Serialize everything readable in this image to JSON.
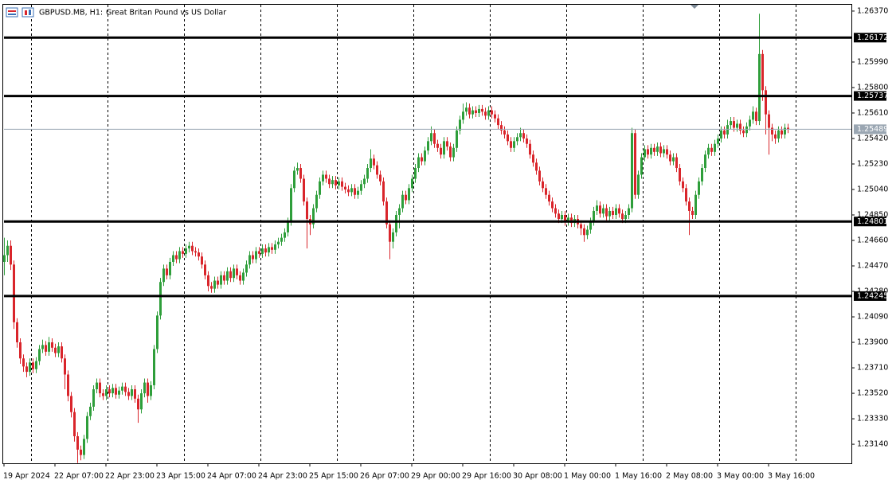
{
  "chart_data": {
    "type": "candlestick",
    "symbol": "GBPUSD.MB, H1:",
    "title": "Great Britan Pound vs US Dollar",
    "up_color": "#2e9e3a",
    "down_color": "#d9252b",
    "categories": [
      "19 Apr 2024",
      null,
      null,
      null,
      null,
      null,
      null,
      null,
      null,
      null,
      null,
      null,
      null,
      null,
      null,
      null,
      "22 Apr 07:00",
      null,
      null,
      null,
      null,
      null,
      null,
      null,
      null,
      null,
      null,
      null,
      null,
      null,
      null,
      null,
      "22 Apr 23:00",
      null,
      null,
      null,
      null,
      null,
      null,
      null,
      null,
      null,
      null,
      null,
      null,
      null,
      null,
      null,
      "23 Apr 15:00",
      null,
      null,
      null,
      null,
      null,
      null,
      null,
      null,
      null,
      null,
      null,
      null,
      null,
      null,
      null,
      "24 Apr 07:00",
      null,
      null,
      null,
      null,
      null,
      null,
      null,
      null,
      null,
      null,
      null,
      null,
      null,
      null,
      null,
      "24 Apr 23:00",
      null,
      null,
      null,
      null,
      null,
      null,
      null,
      null,
      null,
      null,
      null,
      null,
      null,
      null,
      null,
      "25 Apr 15:00",
      null,
      null,
      null,
      null,
      null,
      null,
      null,
      null,
      null,
      null,
      null,
      null,
      null,
      null,
      null,
      "26 Apr 07:00",
      null,
      null,
      null,
      null,
      null,
      null,
      null,
      null,
      null,
      null,
      null,
      null,
      null,
      null,
      null,
      "29 Apr 00:00",
      null,
      null,
      null,
      null,
      null,
      null,
      null,
      null,
      null,
      null,
      null,
      null,
      null,
      null,
      null,
      "29 Apr 16:00",
      null,
      null,
      null,
      null,
      null,
      null,
      null,
      null,
      null,
      null,
      null,
      null,
      null,
      null,
      null,
      "30 Apr 08:00",
      null,
      null,
      null,
      null,
      null,
      null,
      null,
      null,
      null,
      null,
      null,
      null,
      null,
      null,
      null,
      "1 May 00:00",
      null,
      null,
      null,
      null,
      null,
      null,
      null,
      null,
      null,
      null,
      null,
      null,
      null,
      null,
      null,
      "1 May 16:00",
      null,
      null,
      null,
      null,
      null,
      null,
      null,
      null,
      null,
      null,
      null,
      null,
      null,
      null,
      null,
      "2 May 08:00",
      null,
      null,
      null,
      null,
      null,
      null,
      null,
      null,
      null,
      null,
      null,
      null,
      null,
      null,
      null,
      "3 May 00:00",
      null,
      null,
      null,
      null,
      null,
      null,
      null,
      null,
      null,
      null,
      null,
      null,
      null,
      null,
      null,
      "3 May 16:00",
      null,
      null,
      null,
      null,
      null,
      null
    ],
    "open": [
      1.245,
      1.2455,
      1.2462,
      1.2448,
      1.2405,
      1.239,
      1.2378,
      1.2372,
      1.2368,
      1.2375,
      1.237,
      1.2376,
      1.2385,
      1.2388,
      1.2383,
      1.239,
      1.2386,
      1.2382,
      1.2387,
      1.2378,
      1.2366,
      1.235,
      1.2338,
      1.232,
      1.231,
      1.2306,
      1.2318,
      1.2335,
      1.2342,
      1.2355,
      1.236,
      1.2352,
      1.235,
      1.2355,
      1.2352,
      1.2356,
      1.2351,
      1.2354,
      1.2357,
      1.2353,
      1.235,
      1.2355,
      1.2348,
      1.234,
      1.2352,
      1.236,
      1.235,
      1.2358,
      1.2385,
      1.241,
      1.2435,
      1.2445,
      1.244,
      1.245,
      1.2455,
      1.2452,
      1.2458,
      1.2456,
      1.246,
      1.2462,
      1.2458,
      1.2457,
      1.2454,
      1.2448,
      1.244,
      1.2432,
      1.243,
      1.2436,
      1.2433,
      1.244,
      1.2436,
      1.2443,
      1.2438,
      1.2445,
      1.244,
      1.2436,
      1.2442,
      1.2448,
      1.2455,
      1.2452,
      1.2458,
      1.2456,
      1.246,
      1.2457,
      1.2461,
      1.2459,
      1.2463,
      1.2465,
      1.2468,
      1.2472,
      1.248,
      1.2505,
      1.2518,
      1.252,
      1.2512,
      1.2495,
      1.2482,
      1.2478,
      1.249,
      1.25,
      1.251,
      1.2515,
      1.2512,
      1.2508,
      1.2511,
      1.2507,
      1.251,
      1.2506,
      1.2504,
      1.2502,
      1.2505,
      1.25,
      1.2503,
      1.2508,
      1.2512,
      1.252,
      1.2527,
      1.2522,
      1.2515,
      1.251,
      1.2495,
      1.2478,
      1.2465,
      1.2472,
      1.2485,
      1.249,
      1.25,
      1.2496,
      1.2505,
      1.2512,
      1.252,
      1.2528,
      1.2525,
      1.2533,
      1.254,
      1.2546,
      1.2538,
      1.2535,
      1.253,
      1.254,
      1.2536,
      1.2528,
      1.2535,
      1.2548,
      1.2556,
      1.2562,
      1.2565,
      1.256,
      1.2563,
      1.2561,
      1.2564,
      1.2562,
      1.2559,
      1.2563,
      1.256,
      1.2557,
      1.2552,
      1.2548,
      1.2545,
      1.254,
      1.2535,
      1.254,
      1.2543,
      1.2546,
      1.2542,
      1.2538,
      1.253,
      1.2524,
      1.2518,
      1.251,
      1.2505,
      1.25,
      1.2495,
      1.249,
      1.2486,
      1.2482,
      1.2485,
      1.248,
      1.2483,
      1.2479,
      1.2482,
      1.2478,
      1.2475,
      1.247,
      1.2474,
      1.248,
      1.2488,
      1.2492,
      1.2486,
      1.249,
      1.2484,
      1.2488,
      1.2485,
      1.249,
      1.2486,
      1.2482,
      1.2485,
      1.249,
      1.2546,
      1.25,
      1.2515,
      1.2528,
      1.2534,
      1.253,
      1.2535,
      1.2532,
      1.2536,
      1.2531,
      1.2534,
      1.253,
      1.2525,
      1.2528,
      1.252,
      1.251,
      1.2505,
      1.2495,
      1.2488,
      1.2485,
      1.25,
      1.251,
      1.252,
      1.253,
      1.2535,
      1.2532,
      1.2538,
      1.2542,
      1.2548,
      1.2545,
      1.2552,
      1.2555,
      1.255,
      1.2553,
      1.2548,
      1.2546,
      1.2551,
      1.2556,
      1.2562,
      1.2555,
      1.2605,
      1.2578,
      1.256,
      1.255,
      1.2545,
      1.2542,
      1.2548,
      1.2545,
      1.255
    ],
    "high": [
      1.2468,
      1.2466,
      1.2466,
      1.2451,
      1.2408,
      1.2393,
      1.2381,
      1.2375,
      1.2378,
      1.2378,
      1.2379,
      1.2388,
      1.2392,
      1.2391,
      1.2394,
      1.2393,
      1.2389,
      1.239,
      1.239,
      1.2381,
      1.2369,
      1.2353,
      1.2341,
      1.2323,
      1.2313,
      1.2321,
      1.2338,
      1.2345,
      1.2358,
      1.2363,
      1.2363,
      1.2355,
      1.2358,
      1.2358,
      1.2359,
      1.2359,
      1.2357,
      1.236,
      1.236,
      1.2356,
      1.2358,
      1.2358,
      1.2351,
      1.2355,
      1.2363,
      1.2363,
      1.2361,
      1.2388,
      1.2413,
      1.2438,
      1.2448,
      1.2448,
      1.2453,
      1.2458,
      1.2458,
      1.2461,
      1.2461,
      1.2463,
      1.2465,
      1.2465,
      1.2461,
      1.246,
      1.2457,
      1.2451,
      1.2443,
      1.2435,
      1.2439,
      1.2439,
      1.2443,
      1.2443,
      1.2446,
      1.2446,
      1.2448,
      1.2448,
      1.2443,
      1.2445,
      1.2451,
      1.2458,
      1.2458,
      1.2461,
      1.2461,
      1.2463,
      1.2463,
      1.2464,
      1.2464,
      1.2466,
      1.2468,
      1.2471,
      1.2475,
      1.2483,
      1.2508,
      1.2521,
      1.2524,
      1.2523,
      1.2515,
      1.2498,
      1.2485,
      1.2493,
      1.2503,
      1.2513,
      1.2518,
      1.2518,
      1.2515,
      1.2514,
      1.2514,
      1.2513,
      1.2513,
      1.2509,
      1.2507,
      1.2508,
      1.2508,
      1.2506,
      1.2511,
      1.2515,
      1.2523,
      1.2534,
      1.253,
      1.2525,
      1.2518,
      1.2513,
      1.2498,
      1.2481,
      1.2475,
      1.2488,
      1.2493,
      1.2503,
      1.2503,
      1.2508,
      1.2515,
      1.2523,
      1.2531,
      1.2531,
      1.2536,
      1.2543,
      1.2551,
      1.2549,
      1.2541,
      1.2538,
      1.2543,
      1.2543,
      1.2539,
      1.2538,
      1.2551,
      1.2559,
      1.2568,
      1.2569,
      1.2568,
      1.2566,
      1.2566,
      1.2567,
      1.2567,
      1.2565,
      1.2566,
      1.2566,
      1.2563,
      1.256,
      1.2555,
      1.2551,
      1.2548,
      1.2543,
      1.2543,
      1.2546,
      1.255,
      1.2549,
      1.2545,
      1.2541,
      1.2533,
      1.2527,
      1.2521,
      1.2513,
      1.2508,
      1.2503,
      1.2498,
      1.2493,
      1.2489,
      1.2488,
      1.2488,
      1.2486,
      1.2486,
      1.2485,
      1.2485,
      1.2481,
      1.2478,
      1.2477,
      1.2483,
      1.2491,
      1.2496,
      1.2495,
      1.2493,
      1.2493,
      1.2491,
      1.2491,
      1.2493,
      1.2493,
      1.2489,
      1.2488,
      1.2493,
      1.255,
      1.2549,
      1.2518,
      1.2531,
      1.2537,
      1.2537,
      1.2538,
      1.2538,
      1.2539,
      1.2539,
      1.2537,
      1.2537,
      1.2533,
      1.2531,
      1.2531,
      1.2523,
      1.2513,
      1.2508,
      1.2498,
      1.2491,
      1.2503,
      1.2513,
      1.2523,
      1.2533,
      1.2538,
      1.2538,
      1.2541,
      1.2545,
      1.2551,
      1.2551,
      1.2556,
      1.2558,
      1.2558,
      1.2556,
      1.2556,
      1.2551,
      1.2554,
      1.2559,
      1.2566,
      1.2565,
      1.2635,
      1.2608,
      1.2581,
      1.2563,
      1.2553,
      1.2548,
      1.2551,
      1.2551,
      1.2553,
      1.2553
    ],
    "low": [
      1.244,
      1.245,
      1.2444,
      1.24,
      1.2386,
      1.2374,
      1.2368,
      1.2364,
      1.2365,
      1.2367,
      1.2367,
      1.2373,
      1.2382,
      1.238,
      1.238,
      1.2383,
      1.2379,
      1.2379,
      1.2375,
      1.2355,
      1.2346,
      1.2334,
      1.2316,
      1.23,
      1.2302,
      1.2303,
      1.2315,
      1.2332,
      1.2339,
      1.2352,
      1.2349,
      1.2347,
      1.2347,
      1.2349,
      1.2349,
      1.2348,
      1.2348,
      1.2351,
      1.235,
      1.2347,
      1.2347,
      1.2345,
      1.233,
      1.2337,
      1.2349,
      1.2345,
      1.2347,
      1.2355,
      1.2382,
      1.2407,
      1.2432,
      1.2437,
      1.2437,
      1.2447,
      1.2449,
      1.2449,
      1.2453,
      1.2453,
      1.2457,
      1.2455,
      1.2454,
      1.2451,
      1.2445,
      1.2437,
      1.2428,
      1.2427,
      1.2427,
      1.243,
      1.243,
      1.2433,
      1.2433,
      1.2435,
      1.2435,
      1.2437,
      1.2433,
      1.2433,
      1.2439,
      1.2445,
      1.2449,
      1.2449,
      1.2453,
      1.2453,
      1.2454,
      1.2454,
      1.2456,
      1.2456,
      1.246,
      1.2462,
      1.2465,
      1.2469,
      1.2477,
      1.2502,
      1.2515,
      1.2509,
      1.2492,
      1.246,
      1.247,
      1.2475,
      1.2487,
      1.2497,
      1.2507,
      1.2509,
      1.2505,
      1.2505,
      1.2504,
      1.2504,
      1.2503,
      1.2501,
      1.2499,
      1.2499,
      1.2497,
      1.2497,
      1.25,
      1.2505,
      1.2509,
      1.2517,
      1.2519,
      1.2512,
      1.2507,
      1.2492,
      1.2475,
      1.2452,
      1.246,
      1.2469,
      1.2475,
      1.2487,
      1.2493,
      1.2493,
      1.2502,
      1.2509,
      1.2517,
      1.2522,
      1.2522,
      1.253,
      1.2537,
      1.2535,
      1.2532,
      1.2527,
      1.2527,
      1.2533,
      1.2525,
      1.2525,
      1.2532,
      1.2545,
      1.2553,
      1.2559,
      1.2557,
      1.2557,
      1.2558,
      1.2558,
      1.2559,
      1.2556,
      1.2556,
      1.2557,
      1.2554,
      1.2549,
      1.2545,
      1.2542,
      1.2537,
      1.2532,
      1.2532,
      1.2537,
      1.254,
      1.2539,
      1.2535,
      1.2527,
      1.2521,
      1.2515,
      1.2507,
      1.2502,
      1.2497,
      1.2492,
      1.2487,
      1.2483,
      1.2479,
      1.2479,
      1.2477,
      1.2477,
      1.2476,
      1.2476,
      1.2475,
      1.247,
      1.2465,
      1.2467,
      1.2471,
      1.2477,
      1.2485,
      1.2483,
      1.2483,
      1.2481,
      1.2481,
      1.2482,
      1.2482,
      1.2483,
      1.2479,
      1.2479,
      1.2482,
      1.2487,
      1.2497,
      1.2497,
      1.2512,
      1.2525,
      1.2527,
      1.2527,
      1.2529,
      1.2529,
      1.2528,
      1.2528,
      1.2527,
      1.2522,
      1.2522,
      1.2517,
      1.2507,
      1.2502,
      1.2492,
      1.247,
      1.2482,
      1.2482,
      1.2497,
      1.2507,
      1.2517,
      1.2527,
      1.2529,
      1.2529,
      1.2535,
      1.2539,
      1.2542,
      1.2542,
      1.2549,
      1.2547,
      1.2547,
      1.2545,
      1.2543,
      1.2543,
      1.2548,
      1.2553,
      1.2552,
      1.2552,
      1.257,
      1.2545,
      1.253,
      1.254,
      1.2538,
      1.2539,
      1.2542,
      1.2542,
      1.2546
    ],
    "close": [
      1.2455,
      1.2462,
      1.2448,
      1.2405,
      1.239,
      1.2378,
      1.2372,
      1.2368,
      1.2375,
      1.237,
      1.2376,
      1.2385,
      1.2388,
      1.2383,
      1.239,
      1.2386,
      1.2382,
      1.2387,
      1.2378,
      1.2366,
      1.235,
      1.2338,
      1.232,
      1.231,
      1.2306,
      1.2318,
      1.2335,
      1.2342,
      1.2355,
      1.236,
      1.2352,
      1.235,
      1.2355,
      1.2352,
      1.2356,
      1.2351,
      1.2354,
      1.2357,
      1.2353,
      1.235,
      1.2355,
      1.2348,
      1.234,
      1.2352,
      1.236,
      1.235,
      1.2358,
      1.2385,
      1.241,
      1.2435,
      1.2445,
      1.244,
      1.245,
      1.2455,
      1.2452,
      1.2458,
      1.2456,
      1.246,
      1.2462,
      1.2458,
      1.2457,
      1.2454,
      1.2448,
      1.244,
      1.2432,
      1.243,
      1.2436,
      1.2433,
      1.244,
      1.2436,
      1.2443,
      1.2438,
      1.2445,
      1.244,
      1.2436,
      1.2442,
      1.2448,
      1.2455,
      1.2452,
      1.2458,
      1.2456,
      1.246,
      1.2457,
      1.2461,
      1.2459,
      1.2463,
      1.2465,
      1.2468,
      1.2472,
      1.248,
      1.2505,
      1.2518,
      1.252,
      1.2512,
      1.2495,
      1.2482,
      1.2478,
      1.249,
      1.25,
      1.251,
      1.2515,
      1.2512,
      1.2508,
      1.2511,
      1.2507,
      1.251,
      1.2506,
      1.2504,
      1.2502,
      1.2505,
      1.25,
      1.2503,
      1.2508,
      1.2512,
      1.252,
      1.2527,
      1.2522,
      1.2515,
      1.251,
      1.2495,
      1.2478,
      1.2465,
      1.2472,
      1.2485,
      1.249,
      1.25,
      1.2496,
      1.2505,
      1.2512,
      1.252,
      1.2528,
      1.2525,
      1.2533,
      1.254,
      1.2546,
      1.2538,
      1.2535,
      1.253,
      1.254,
      1.2536,
      1.2528,
      1.2535,
      1.2548,
      1.2556,
      1.2562,
      1.2565,
      1.256,
      1.2563,
      1.2561,
      1.2564,
      1.2562,
      1.2559,
      1.2563,
      1.256,
      1.2557,
      1.2552,
      1.2548,
      1.2545,
      1.254,
      1.2535,
      1.254,
      1.2543,
      1.2546,
      1.2542,
      1.2538,
      1.253,
      1.2524,
      1.2518,
      1.251,
      1.2505,
      1.25,
      1.2495,
      1.249,
      1.2486,
      1.2482,
      1.2485,
      1.248,
      1.2483,
      1.2479,
      1.2482,
      1.2478,
      1.2475,
      1.247,
      1.2474,
      1.248,
      1.2488,
      1.2492,
      1.2486,
      1.249,
      1.2484,
      1.2488,
      1.2485,
      1.249,
      1.2486,
      1.2482,
      1.2485,
      1.249,
      1.2546,
      1.25,
      1.2515,
      1.2528,
      1.2534,
      1.253,
      1.2535,
      1.2532,
      1.2536,
      1.2531,
      1.2534,
      1.253,
      1.2525,
      1.2528,
      1.252,
      1.251,
      1.2505,
      1.2495,
      1.2488,
      1.2485,
      1.25,
      1.251,
      1.252,
      1.253,
      1.2535,
      1.2532,
      1.2538,
      1.2542,
      1.2548,
      1.2545,
      1.2552,
      1.2555,
      1.255,
      1.2553,
      1.2548,
      1.2546,
      1.2551,
      1.2556,
      1.2562,
      1.2555,
      1.2605,
      1.2578,
      1.256,
      1.255,
      1.2545,
      1.2542,
      1.2548,
      1.2545,
      1.255,
      1.2549
    ],
    "ylim": [
      1.22998,
      1.26423
    ],
    "yticks": [
      {
        "value": 1.2637,
        "label": "1.26370"
      },
      {
        "value": 1.2599,
        "label": "1.25990"
      },
      {
        "value": 1.258,
        "label": "1.25800"
      },
      {
        "value": 1.2561,
        "label": "1.25610"
      },
      {
        "value": 1.2542,
        "label": "1.25420"
      },
      {
        "value": 1.2523,
        "label": "1.25230"
      },
      {
        "value": 1.2504,
        "label": "1.25040"
      },
      {
        "value": 1.2485,
        "label": "1.24850"
      },
      {
        "value": 1.2466,
        "label": "1.24660"
      },
      {
        "value": 1.2447,
        "label": "1.24470"
      },
      {
        "value": 1.2428,
        "label": "1.24280"
      },
      {
        "value": 1.2409,
        "label": "1.24090"
      },
      {
        "value": 1.239,
        "label": "1.23900"
      },
      {
        "value": 1.2371,
        "label": "1.23710"
      },
      {
        "value": 1.2352,
        "label": "1.23520"
      },
      {
        "value": 1.2333,
        "label": "1.23330"
      },
      {
        "value": 1.2314,
        "label": "1.23140"
      }
    ],
    "levels": [
      1.26172,
      1.25737,
      1.24801,
      1.24245
    ],
    "level_color": "#000000",
    "current_price": 1.25489,
    "current_price_color": "#9aa6b2"
  }
}
